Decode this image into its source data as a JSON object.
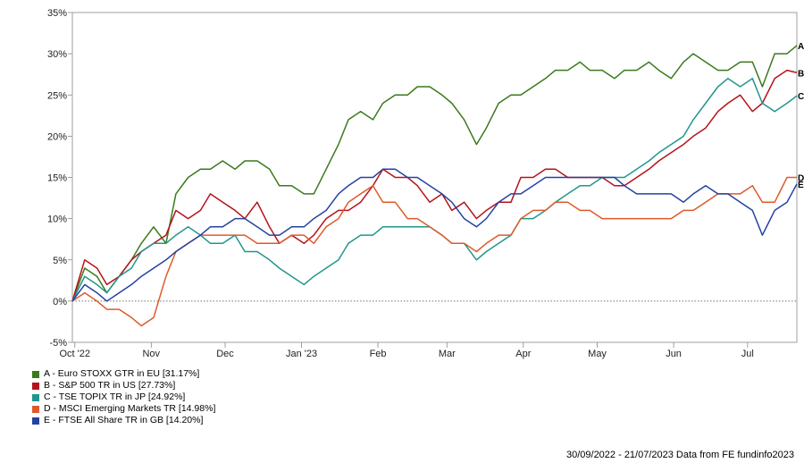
{
  "chart_data": {
    "type": "line",
    "y_tick_labels": [
      "35%",
      "30%",
      "25%",
      "20%",
      "15%",
      "10%",
      "5%",
      "0%",
      "-5%"
    ],
    "y_ticks": [
      35,
      30,
      25,
      20,
      15,
      10,
      5,
      0,
      -5
    ],
    "ylim": [
      -5,
      35
    ],
    "x_tick_labels": [
      "Oct '22",
      "Nov",
      "Dec",
      "Jan '23",
      "Feb",
      "Mar",
      "Apr",
      "May",
      "Jun",
      "Jul"
    ],
    "x_ticks": [
      "2022-10-01",
      "2022-11-01",
      "2022-12-01",
      "2023-01-01",
      "2023-02-01",
      "2023-03-01",
      "2023-04-01",
      "2023-05-01",
      "2023-06-01",
      "2023-07-01"
    ],
    "xlim": [
      "2022-09-30",
      "2023-07-21"
    ],
    "x": [
      "2022-09-30",
      "2022-10-05",
      "2022-10-10",
      "2022-10-14",
      "2022-10-19",
      "2022-10-24",
      "2022-10-28",
      "2022-11-02",
      "2022-11-07",
      "2022-11-11",
      "2022-11-16",
      "2022-11-21",
      "2022-11-25",
      "2022-11-30",
      "2022-12-05",
      "2022-12-09",
      "2022-12-14",
      "2022-12-19",
      "2022-12-23",
      "2022-12-28",
      "2023-01-02",
      "2023-01-06",
      "2023-01-11",
      "2023-01-16",
      "2023-01-20",
      "2023-01-25",
      "2023-01-30",
      "2023-02-03",
      "2023-02-08",
      "2023-02-13",
      "2023-02-17",
      "2023-02-22",
      "2023-02-27",
      "2023-03-03",
      "2023-03-08",
      "2023-03-13",
      "2023-03-17",
      "2023-03-22",
      "2023-03-27",
      "2023-03-31",
      "2023-04-05",
      "2023-04-10",
      "2023-04-14",
      "2023-04-19",
      "2023-04-24",
      "2023-04-28",
      "2023-05-03",
      "2023-05-08",
      "2023-05-12",
      "2023-05-17",
      "2023-05-22",
      "2023-05-26",
      "2023-05-31",
      "2023-06-05",
      "2023-06-09",
      "2023-06-14",
      "2023-06-19",
      "2023-06-23",
      "2023-06-28",
      "2023-07-03",
      "2023-07-07",
      "2023-07-12",
      "2023-07-17",
      "2023-07-21"
    ],
    "series": [
      {
        "name": "A - Euro STOXX GTR in EU [31.17%]",
        "end_label": "A",
        "color": "#3a7a1c",
        "values": [
          0,
          4,
          3,
          1,
          3,
          5,
          7,
          9,
          7,
          13,
          15,
          16,
          16,
          17,
          16,
          17,
          17,
          16,
          14,
          14,
          13,
          13,
          16,
          19,
          22,
          23,
          22,
          24,
          25,
          25,
          26,
          26,
          25,
          24,
          22,
          19,
          21,
          24,
          25,
          25,
          26,
          27,
          28,
          28,
          29,
          28,
          28,
          27,
          28,
          28,
          29,
          28,
          27,
          29,
          30,
          29,
          28,
          28,
          29,
          29,
          26,
          30,
          30,
          31
        ]
      },
      {
        "name": "B - S&P 500 TR in US [27.73%]",
        "end_label": "B",
        "color": "#b5121b",
        "values": [
          0,
          5,
          4,
          2,
          3,
          5,
          6,
          7,
          8,
          11,
          10,
          11,
          13,
          12,
          11,
          10,
          12,
          9,
          7,
          8,
          7,
          8,
          10,
          11,
          11,
          12,
          14,
          16,
          15,
          15,
          14,
          12,
          13,
          11,
          12,
          10,
          11,
          12,
          12,
          15,
          15,
          16,
          16,
          15,
          15,
          15,
          15,
          14,
          14,
          15,
          16,
          17,
          18,
          19,
          20,
          21,
          23,
          24,
          25,
          23,
          24,
          27,
          28,
          27.7
        ]
      },
      {
        "name": "C - TSE TOPIX TR in JP [24.92%]",
        "end_label": "C",
        "color": "#21968c",
        "values": [
          0,
          3,
          2,
          1,
          3,
          4,
          6,
          7,
          7,
          8,
          9,
          8,
          7,
          7,
          8,
          6,
          6,
          5,
          4,
          3,
          2,
          3,
          4,
          5,
          7,
          8,
          8,
          9,
          9,
          9,
          9,
          9,
          8,
          7,
          7,
          5,
          6,
          7,
          8,
          10,
          10,
          11,
          12,
          13,
          14,
          14,
          15,
          15,
          15,
          16,
          17,
          18,
          19,
          20,
          22,
          24,
          26,
          27,
          26,
          27,
          24,
          23,
          24,
          24.9
        ]
      },
      {
        "name": "D - MSCI Emerging Markets TR [14.98%]",
        "end_label": "D",
        "color": "#de5a2a",
        "values": [
          0,
          1,
          0,
          -1,
          -1,
          -2,
          -3,
          -2,
          3,
          6,
          7,
          8,
          8,
          8,
          8,
          8,
          7,
          7,
          7,
          8,
          8,
          7,
          9,
          10,
          12,
          13,
          14,
          12,
          12,
          10,
          10,
          9,
          8,
          7,
          7,
          6,
          7,
          8,
          8,
          10,
          11,
          11,
          12,
          12,
          11,
          11,
          10,
          10,
          10,
          10,
          10,
          10,
          10,
          11,
          11,
          12,
          13,
          13,
          13,
          14,
          12,
          12,
          15,
          15
        ]
      },
      {
        "name": "E - FTSE All Share TR in GB [14.20%]",
        "end_label": "E",
        "color": "#2442a0",
        "values": [
          0,
          2,
          1,
          0,
          1,
          2,
          3,
          4,
          5,
          6,
          7,
          8,
          9,
          9,
          10,
          10,
          9,
          8,
          8,
          9,
          9,
          10,
          11,
          13,
          14,
          15,
          15,
          16,
          16,
          15,
          15,
          14,
          13,
          12,
          10,
          9,
          10,
          12,
          13,
          13,
          14,
          15,
          15,
          15,
          15,
          15,
          15,
          15,
          14,
          13,
          13,
          13,
          13,
          12,
          13,
          14,
          13,
          13,
          12,
          11,
          8,
          11,
          12,
          14.2
        ]
      }
    ]
  },
  "legend": {
    "items": [
      {
        "label": "A - Euro STOXX GTR in EU [31.17%]",
        "color": "#3a7a1c"
      },
      {
        "label": "B - S&P 500 TR in US [27.73%]",
        "color": "#b5121b"
      },
      {
        "label": "C - TSE TOPIX TR in JP [24.92%]",
        "color": "#21968c"
      },
      {
        "label": "D - MSCI Emerging Markets TR [14.98%]",
        "color": "#de5a2a"
      },
      {
        "label": "E - FTSE All Share TR in GB [14.20%]",
        "color": "#2442a0"
      }
    ]
  },
  "footer": {
    "text": "30/09/2022 - 21/07/2023 Data from FE fundinfo2023"
  }
}
